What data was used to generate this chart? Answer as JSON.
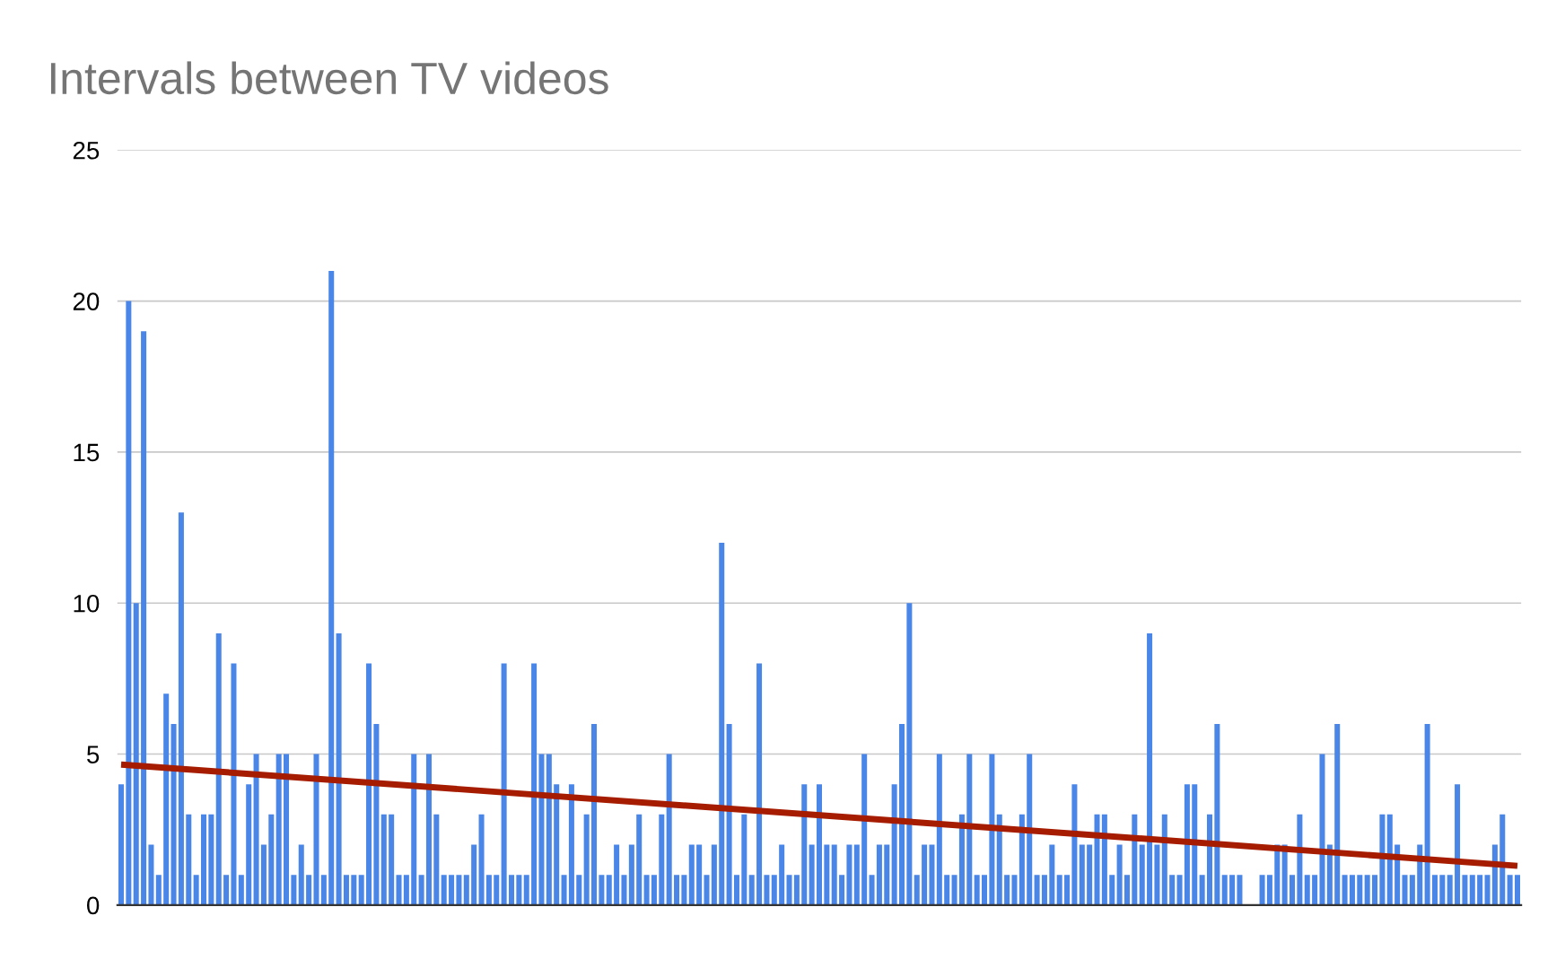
{
  "chart_data": {
    "type": "bar",
    "title": "Intervals between TV videos",
    "categories": [
      null,
      null,
      null,
      null,
      null,
      null,
      null,
      null,
      null,
      null,
      null,
      null,
      null,
      null,
      null,
      null,
      null,
      null,
      null,
      null,
      null,
      null,
      null,
      null,
      null,
      null,
      null,
      null,
      null,
      null,
      null,
      null,
      null,
      null,
      null,
      null,
      null,
      null,
      null,
      null,
      null,
      null,
      null,
      null,
      null,
      null,
      null,
      null,
      null,
      null,
      null,
      null,
      null,
      null,
      null,
      null,
      null,
      null,
      null,
      null,
      null,
      null,
      null,
      null,
      null,
      null,
      null,
      null,
      null,
      null,
      null,
      null,
      null,
      null,
      null,
      null,
      null,
      null,
      null,
      null,
      null,
      null,
      null,
      null,
      null,
      null,
      null,
      null,
      null,
      null,
      null,
      null,
      null,
      null,
      null,
      null,
      null,
      null,
      null,
      null,
      null,
      null,
      null,
      null,
      null,
      null,
      null,
      null,
      null,
      null,
      null,
      null,
      null,
      null,
      null,
      null,
      null,
      null,
      null,
      null,
      null,
      null,
      null,
      null,
      null,
      null,
      null,
      null,
      null,
      null,
      null,
      null,
      null,
      null,
      null,
      null,
      null,
      null,
      null,
      null,
      null,
      null,
      null,
      null,
      null,
      null,
      null,
      null,
      null,
      null,
      null,
      null,
      null,
      null,
      null,
      null,
      null,
      null,
      null,
      null,
      null,
      null,
      null,
      null,
      null,
      null,
      null,
      null,
      null,
      null,
      null,
      null,
      null,
      null,
      null,
      null,
      null,
      null,
      null,
      null,
      null,
      null,
      null,
      null,
      null,
      null,
      null
    ],
    "series": [
      {
        "color": "#4a86e8",
        "values": [
          4,
          20,
          10,
          19,
          2,
          1,
          7,
          6,
          13,
          3,
          1,
          3,
          3,
          9,
          1,
          8,
          1,
          4,
          5,
          2,
          3,
          5,
          5,
          1,
          2,
          1,
          5,
          1,
          21,
          9,
          1,
          1,
          1,
          8,
          6,
          3,
          3,
          1,
          1,
          5,
          1,
          5,
          3,
          1,
          1,
          1,
          1,
          2,
          3,
          1,
          1,
          8,
          1,
          1,
          1,
          8,
          5,
          5,
          4,
          1,
          4,
          1,
          3,
          6,
          1,
          1,
          2,
          1,
          2,
          3,
          1,
          1,
          3,
          5,
          1,
          1,
          2,
          2,
          1,
          2,
          12,
          6,
          1,
          3,
          1,
          8,
          1,
          1,
          2,
          1,
          1,
          4,
          2,
          4,
          2,
          2,
          1,
          2,
          2,
          5,
          1,
          2,
          2,
          4,
          6,
          10,
          1,
          2,
          2,
          5,
          1,
          1,
          3,
          5,
          1,
          1,
          5,
          3,
          1,
          1,
          3,
          5,
          1,
          1,
          2,
          1,
          1,
          4,
          2,
          2,
          3,
          3,
          1,
          2,
          1,
          3,
          2,
          9,
          2,
          3,
          1,
          1,
          4,
          4,
          1,
          3,
          6,
          1,
          1,
          1,
          null,
          null,
          1,
          1,
          2,
          2,
          1,
          3,
          1,
          1,
          5,
          2,
          6,
          1,
          1,
          1,
          1,
          1,
          3,
          3,
          2,
          1,
          1,
          2,
          6,
          1,
          1,
          1,
          4,
          1,
          1,
          1,
          1,
          2,
          3,
          1,
          1
        ]
      },
      {
        "type": "line",
        "color": "#a61c00",
        "values": [
          4.65,
          null,
          null,
          null,
          null,
          null,
          null,
          null,
          null,
          null,
          null,
          null,
          null,
          null,
          null,
          null,
          null,
          null,
          null,
          null,
          null,
          null,
          null,
          null,
          null,
          null,
          null,
          null,
          null,
          null,
          null,
          null,
          null,
          null,
          null,
          null,
          null,
          null,
          null,
          null,
          null,
          null,
          null,
          null,
          null,
          null,
          null,
          null,
          null,
          null,
          null,
          null,
          null,
          null,
          null,
          null,
          null,
          null,
          null,
          null,
          null,
          null,
          null,
          null,
          null,
          null,
          null,
          null,
          null,
          null,
          null,
          null,
          null,
          null,
          null,
          null,
          null,
          null,
          null,
          null,
          null,
          null,
          null,
          null,
          null,
          null,
          null,
          null,
          null,
          null,
          null,
          null,
          null,
          null,
          null,
          null,
          null,
          null,
          null,
          null,
          null,
          null,
          null,
          null,
          null,
          null,
          null,
          null,
          null,
          null,
          null,
          null,
          null,
          null,
          null,
          null,
          null,
          null,
          null,
          null,
          null,
          null,
          null,
          null,
          null,
          null,
          null,
          null,
          null,
          null,
          null,
          null,
          null,
          null,
          null,
          null,
          null,
          null,
          null,
          null,
          null,
          null,
          null,
          null,
          null,
          null,
          null,
          null,
          null,
          null,
          null,
          null,
          null,
          null,
          null,
          null,
          null,
          null,
          null,
          null,
          null,
          null,
          null,
          null,
          null,
          null,
          null,
          null,
          null,
          null,
          null,
          null,
          null,
          null,
          null,
          null,
          null,
          null,
          null,
          null,
          null,
          null,
          null,
          null,
          null,
          null,
          1.3
        ]
      }
    ],
    "ylim": [
      0,
      25
    ],
    "yticks": [
      0,
      5,
      10,
      15,
      20,
      25
    ],
    "grid": "y",
    "legend": false
  }
}
